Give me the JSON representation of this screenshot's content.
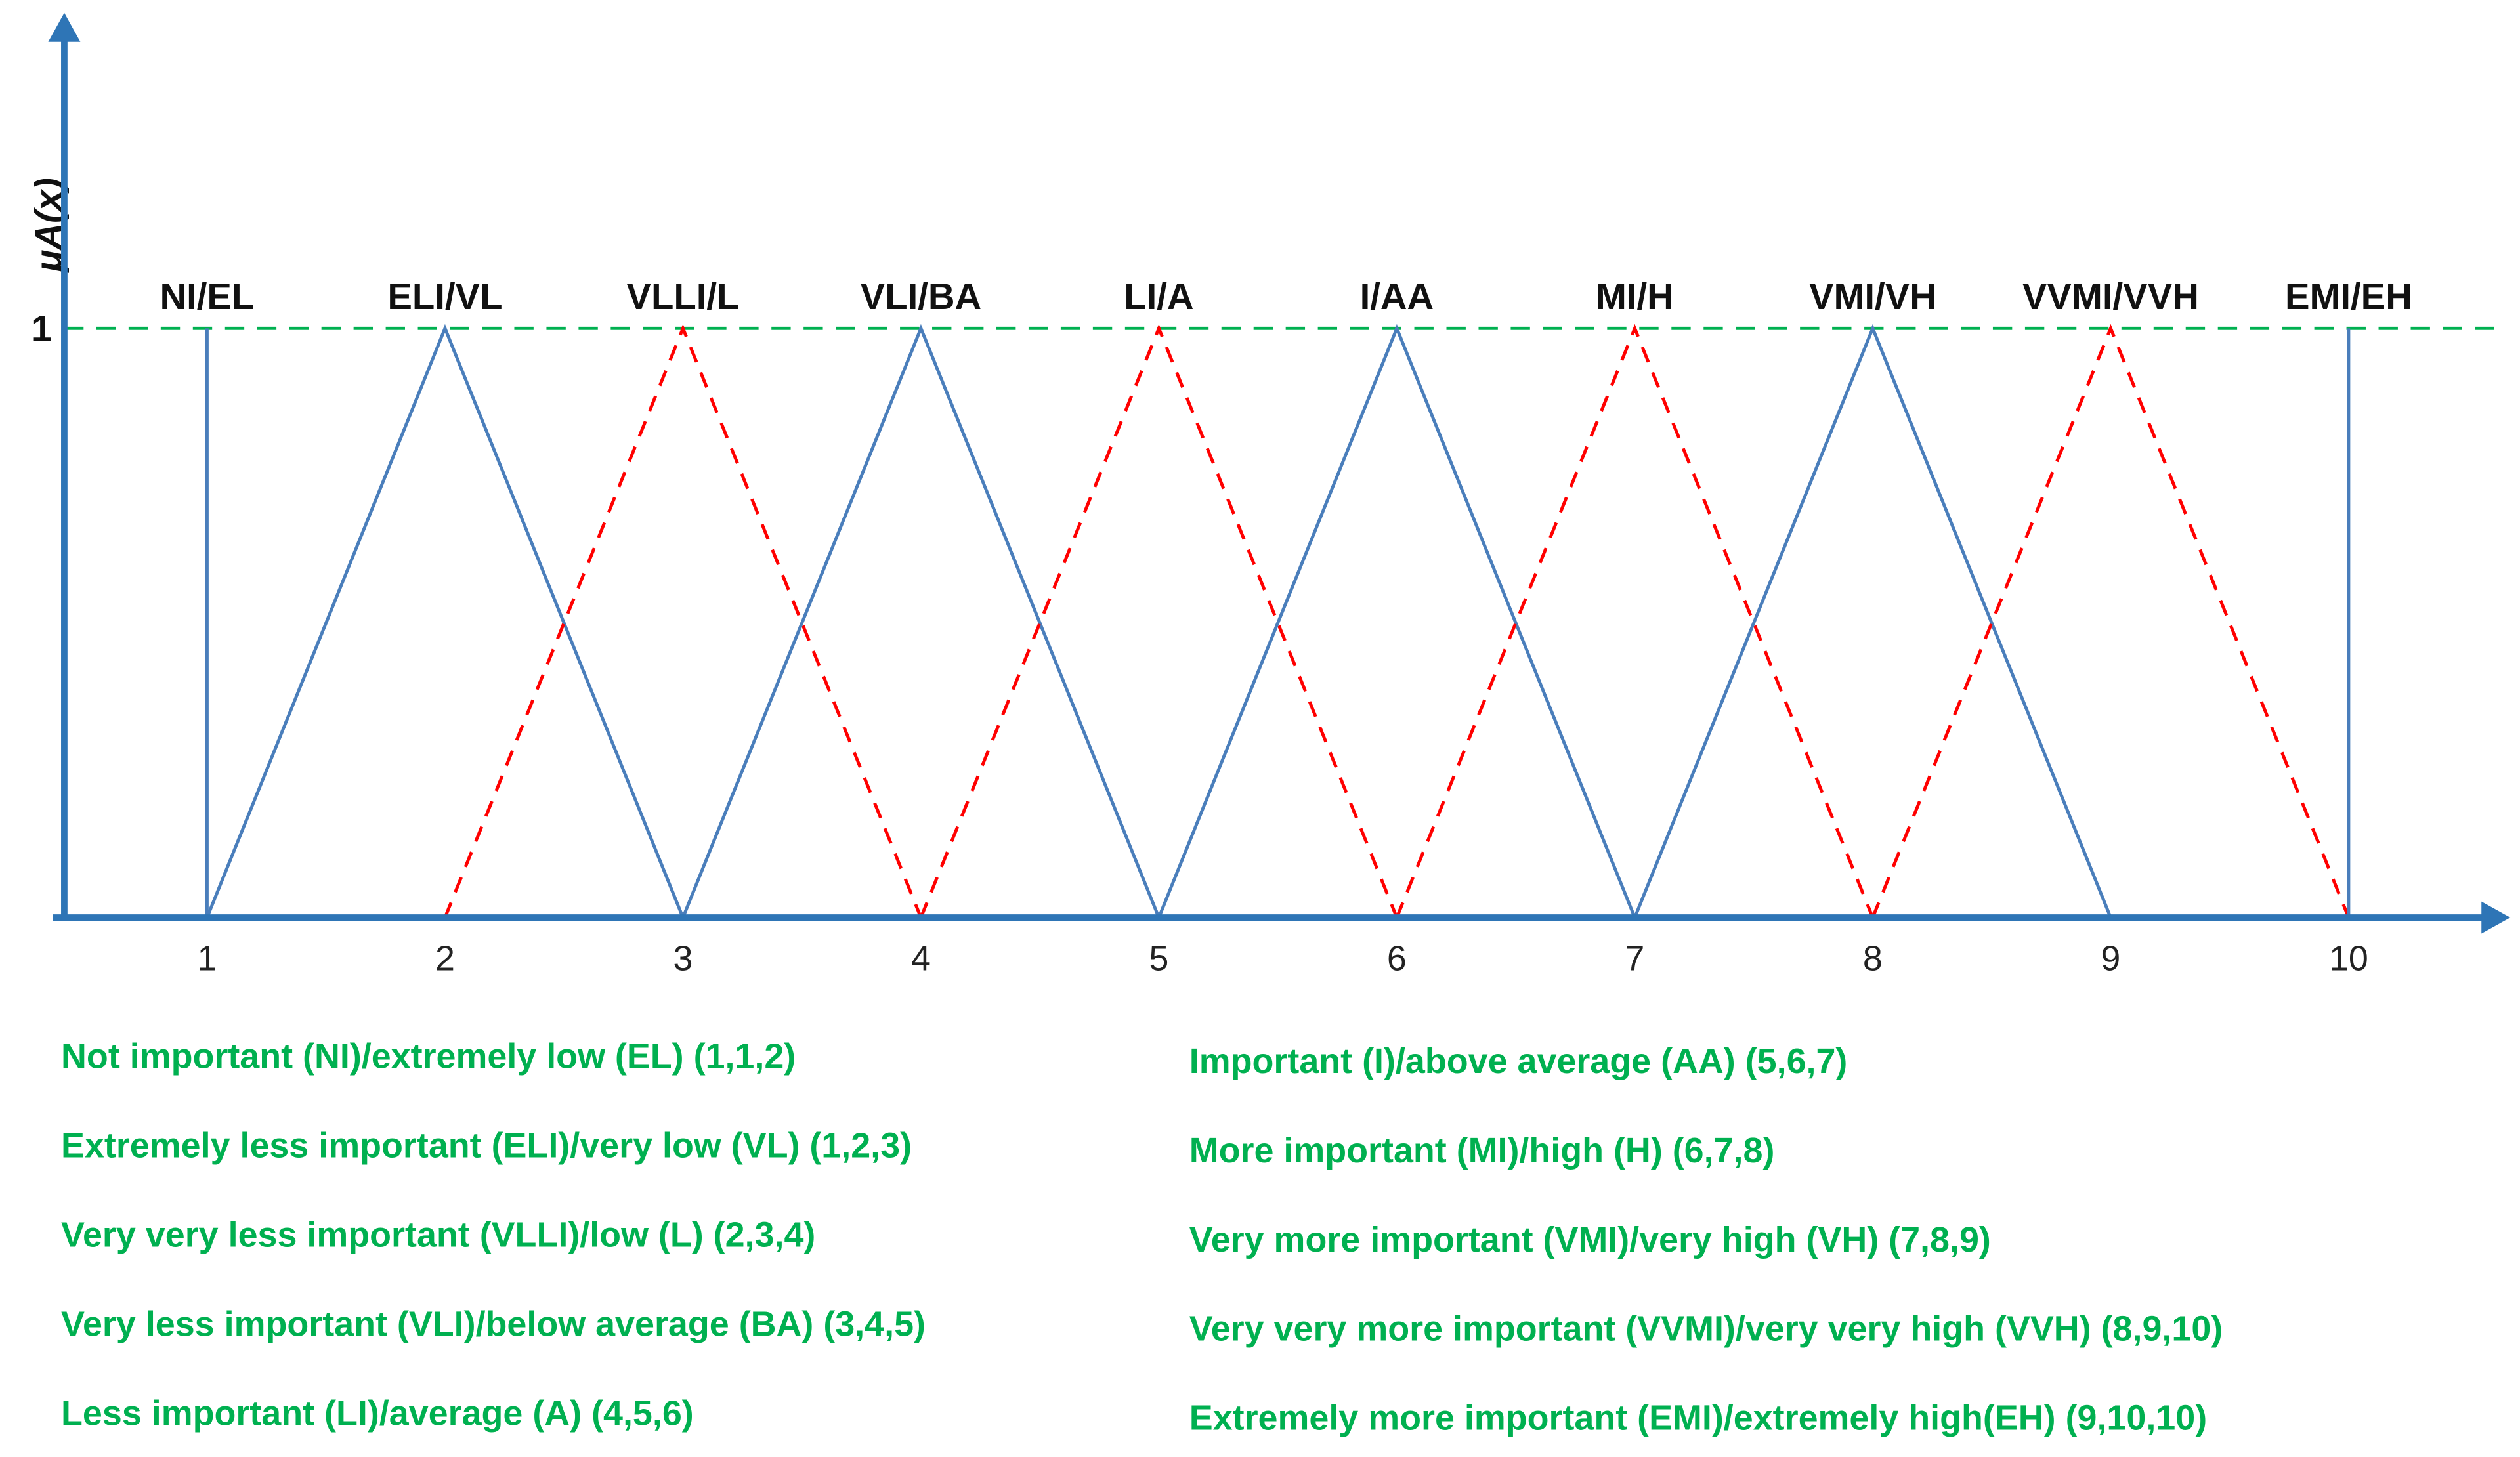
{
  "chart_data": {
    "type": "line",
    "y_label": "μA(x)",
    "xlim": [
      0.4,
      10.7
    ],
    "ylim": [
      0,
      1.53
    ],
    "xticks": [
      1,
      2,
      3,
      4,
      5,
      6,
      7,
      8,
      9,
      10
    ],
    "yticks": [
      1
    ],
    "grid": true,
    "grid_color": "#00b050",
    "axis_color": "#2e75b6",
    "legend_color": "#00b050",
    "series": [
      {
        "name": "NI/EL",
        "color": "#4a7ebb",
        "dashed": false,
        "x": [
          1,
          1
        ],
        "values": [
          0,
          1
        ]
      },
      {
        "name": "ELI/VL",
        "color": "#4a7ebb",
        "dashed": false,
        "x": [
          1,
          2,
          3
        ],
        "values": [
          0,
          1,
          0
        ]
      },
      {
        "name": "VLLI/L",
        "color": "#ff0000",
        "dashed": true,
        "x": [
          2,
          3,
          4
        ],
        "values": [
          0,
          1,
          0
        ]
      },
      {
        "name": "VLI/BA",
        "color": "#4a7ebb",
        "dashed": false,
        "x": [
          3,
          4,
          5
        ],
        "values": [
          0,
          1,
          0
        ]
      },
      {
        "name": "LI/A",
        "color": "#ff0000",
        "dashed": true,
        "x": [
          4,
          5,
          6
        ],
        "values": [
          0,
          1,
          0
        ]
      },
      {
        "name": "I/AA",
        "color": "#4a7ebb",
        "dashed": false,
        "x": [
          5,
          6,
          7
        ],
        "values": [
          0,
          1,
          0
        ]
      },
      {
        "name": "MI/H",
        "color": "#ff0000",
        "dashed": true,
        "x": [
          6,
          7,
          8
        ],
        "values": [
          0,
          1,
          0
        ]
      },
      {
        "name": "VMI/VH",
        "color": "#4a7ebb",
        "dashed": false,
        "x": [
          7,
          8,
          9
        ],
        "values": [
          0,
          1,
          0
        ]
      },
      {
        "name": "VVMI/VVH",
        "color": "#ff0000",
        "dashed": true,
        "x": [
          8,
          9,
          10
        ],
        "values": [
          0,
          1,
          0
        ]
      },
      {
        "name": "EMI/EH",
        "color": "#4a7ebb",
        "dashed": false,
        "x": [
          10,
          10
        ],
        "values": [
          0,
          1
        ]
      }
    ],
    "annotations": [
      "Not important (NI)/extremely low (EL) (1,1,2)",
      "Extremely less important (ELI)/very low (VL) (1,2,3)",
      "Very very less important (VLLI)/low (L) (2,3,4)",
      "Very less important (VLI)/below average (BA) (3,4,5)",
      "Less important (LI)/average (A) (4,5,6)",
      "Important (I)/above average (AA) (5,6,7)",
      "More important (MI)/high (H) (6,7,8)",
      "Very more important (VMI)/very high (VH) (7,8,9)",
      "Very very more important (VVMI)/very very high (VVH) (8,9,10)",
      "Extremely more important (EMI)/extremely high(EH) (9,10,10)"
    ]
  }
}
